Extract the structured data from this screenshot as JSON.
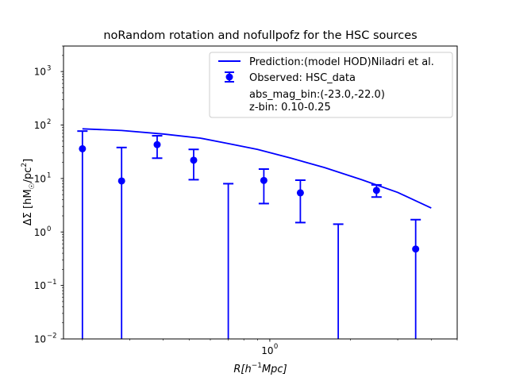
{
  "chart_data": {
    "type": "scatter",
    "title": "noRandom rotation and nofullpofz for the HSC sources",
    "xlabel": "R[h$^{-1}$Mpc]",
    "ylabel": "ΔΣ [hM☉/pc²]",
    "xscale": "log",
    "yscale": "log",
    "xlim": [
      0.17,
      5.0
    ],
    "ylim": [
      0.01,
      3000
    ],
    "grid": false,
    "legend_position": "top-right",
    "x_tick_labels": [
      {
        "value": 1,
        "label": "10",
        "exp": "0"
      }
    ],
    "y_tick_labels": [
      {
        "value": 0.01,
        "label": "10",
        "exp": "−2"
      },
      {
        "value": 0.1,
        "label": "10",
        "exp": "−1"
      },
      {
        "value": 1,
        "label": "10",
        "exp": "0"
      },
      {
        "value": 10,
        "label": "10",
        "exp": "1"
      },
      {
        "value": 100,
        "label": "10",
        "exp": "2"
      },
      {
        "value": 1000,
        "label": "10",
        "exp": "3"
      }
    ],
    "model": {
      "name": "Prediction:(model HOD)Niladri et al.",
      "color": "#0000ff",
      "x": [
        0.2,
        0.28,
        0.4,
        0.55,
        0.7,
        0.9,
        1.2,
        1.6,
        2.2,
        3.0,
        4.0
      ],
      "y": [
        85,
        79,
        68,
        57,
        45,
        35,
        24,
        16,
        9.5,
        5.5,
        2.8
      ]
    },
    "observed": {
      "name": "Observed: HSC_data",
      "color": "#0000ff",
      "points": [
        {
          "x": 0.2,
          "y": 36,
          "lo": 0.001,
          "hi": 77
        },
        {
          "x": 0.28,
          "y": 9,
          "lo": 0.001,
          "hi": 38
        },
        {
          "x": 0.38,
          "y": 43,
          "lo": 24,
          "hi": 63
        },
        {
          "x": 0.52,
          "y": 22,
          "lo": 9.5,
          "hi": 35
        },
        {
          "x": 0.7,
          "y": null,
          "lo": 0.001,
          "hi": 8
        },
        {
          "x": 0.95,
          "y": 9.2,
          "lo": 3.4,
          "hi": 15
        },
        {
          "x": 1.3,
          "y": 5.4,
          "lo": 1.5,
          "hi": 9.3
        },
        {
          "x": 1.8,
          "y": null,
          "lo": 0.001,
          "hi": 1.4
        },
        {
          "x": 2.5,
          "y": 6.0,
          "lo": 4.5,
          "hi": 7.6
        },
        {
          "x": 3.5,
          "y": 0.48,
          "lo": 0.001,
          "hi": 1.7
        }
      ]
    },
    "annotations": [
      "abs_mag_bin:(-23.0,-22.0)",
      "z-bin: 0.10-0.25"
    ]
  }
}
